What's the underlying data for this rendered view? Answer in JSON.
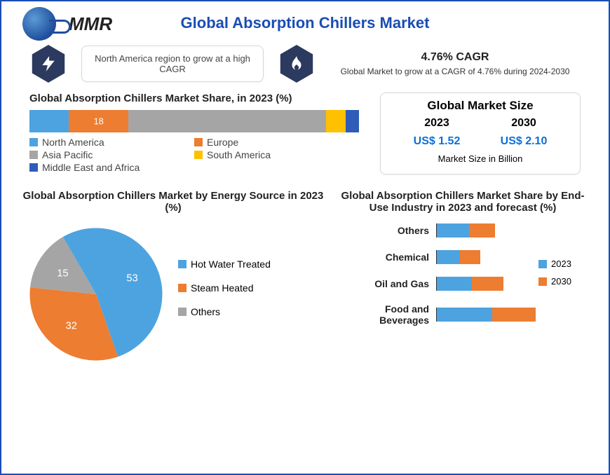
{
  "logo_text": "MMR",
  "title": "Global Absorption Chillers Market",
  "callout1": {
    "text": "North America region to grow at a high CAGR"
  },
  "cagr": {
    "title": "4.76% CAGR",
    "subtitle": "Global Market to grow at a CAGR of 4.76% during 2024-2030"
  },
  "share": {
    "title": "Global Absorption Chillers Market Share, in 2023 (%)",
    "type": "stacked-bar",
    "segments": [
      {
        "name": "North America",
        "value": 12,
        "color": "#4da3e0",
        "show_label": false
      },
      {
        "name": "Europe",
        "value": 18,
        "color": "#ed7d31",
        "show_label": true
      },
      {
        "name": "Asia Pacific",
        "value": 60,
        "color": "#a5a5a5",
        "show_label": false
      },
      {
        "name": "South America",
        "value": 6,
        "color": "#ffc000",
        "show_label": false
      },
      {
        "name": "Middle East and Africa",
        "value": 4,
        "color": "#2e5cb8",
        "show_label": false
      }
    ],
    "legend_order": [
      {
        "name": "North America",
        "color": "#4da3e0"
      },
      {
        "name": "Europe",
        "color": "#ed7d31"
      },
      {
        "name": "Asia Pacific",
        "color": "#a5a5a5"
      },
      {
        "name": "South America",
        "color": "#ffc000"
      },
      {
        "name": "Middle East and Africa",
        "color": "#2e5cb8"
      }
    ]
  },
  "market_size": {
    "title": "Global Market Size",
    "columns": [
      {
        "year": "2023",
        "value": "US$ 1.52"
      },
      {
        "year": "2030",
        "value": "US$ 2.10"
      }
    ],
    "note": "Market Size in Billion"
  },
  "pie": {
    "title": "Global Absorption Chillers Market by Energy Source in 2023 (%)",
    "type": "pie",
    "slices": [
      {
        "name": "Hot Water Treated",
        "value": 53,
        "color": "#4da3e0"
      },
      {
        "name": "Steam Heated",
        "value": 32,
        "color": "#ed7d31"
      },
      {
        "name": "Others",
        "value": 15,
        "color": "#a5a5a5"
      }
    ],
    "label_fontsize": 14,
    "label_color": "#ffffff",
    "start_angle_deg": -30
  },
  "enduse": {
    "title": "Global Absorption Chillers Market Share by End-Use Industry in 2023 and forecast (%)",
    "type": "grouped-bar-horizontal",
    "series": [
      {
        "name": "2023",
        "color": "#4da3e0"
      },
      {
        "name": "2030",
        "color": "#ed7d31"
      }
    ],
    "categories": [
      {
        "name": "Others",
        "v2023": 22,
        "v2030": 18
      },
      {
        "name": "Chemical",
        "v2023": 16,
        "v2030": 14
      },
      {
        "name": "Oil and Gas",
        "v2023": 24,
        "v2030": 22
      },
      {
        "name": "Food and Beverages",
        "v2023": 38,
        "v2030": 30
      }
    ],
    "xmax": 70
  },
  "colors": {
    "brand": "#1a4db3",
    "hex_bg": "#2b3a5e",
    "accent": "#0a6fd8"
  }
}
